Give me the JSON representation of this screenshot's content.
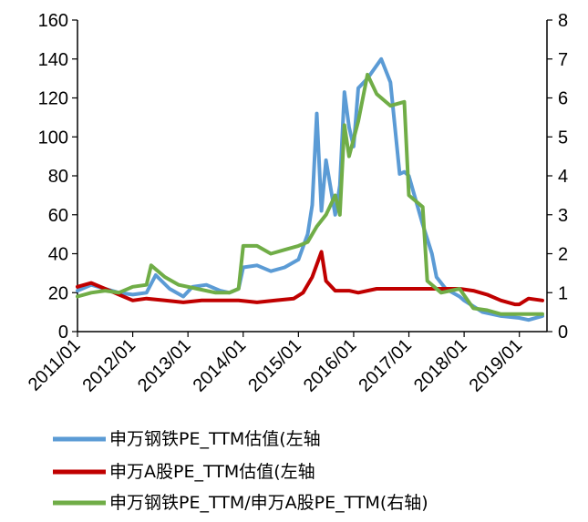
{
  "colors": {
    "blue": "#5B9BD5",
    "red": "#C00000",
    "green": "#70AD47",
    "axis": "#000000"
  },
  "legend": [
    {
      "label": "申万钢铁PE_TTM估值(左轴",
      "color": "#5B9BD5"
    },
    {
      "label": "申万A股PE_TTM估值(左轴",
      "color": "#C00000"
    },
    {
      "label": "申万钢铁PE_TTM/申万A股PE_TTM(右轴)",
      "color": "#70AD47"
    }
  ],
  "chart_data": {
    "type": "line",
    "x_axis": {
      "ticks": [
        "2011/01",
        "2012/01",
        "2013/01",
        "2014/01",
        "2015/01",
        "2016/01",
        "2017/01",
        "2018/01",
        "2019/01"
      ],
      "range": [
        "2011-01",
        "2019-06"
      ]
    },
    "y_left": {
      "ticks": [
        "0",
        "20",
        "40",
        "60",
        "80",
        "100",
        "120",
        "140",
        "160"
      ],
      "ylim": [
        0,
        160
      ]
    },
    "y_right": {
      "ticks": [
        "0",
        "1",
        "2",
        "3",
        "4",
        "5",
        "6",
        "7",
        "8"
      ],
      "ylim": [
        0,
        8
      ]
    },
    "grid": false,
    "legend_position": "bottom",
    "series": [
      {
        "name": "申万钢铁PE_TTM估值(左轴",
        "axis": "left",
        "color": "#5B9BD5",
        "x": [
          "2011-01",
          "2011-04",
          "2011-07",
          "2011-10",
          "2012-01",
          "2012-04",
          "2012-06",
          "2012-09",
          "2012-12",
          "2013-02",
          "2013-05",
          "2013-08",
          "2013-10",
          "2013-12",
          "2014-01",
          "2014-04",
          "2014-07",
          "2014-10",
          "2015-01",
          "2015-03",
          "2015-04",
          "2015-05",
          "2015-06",
          "2015-07",
          "2015-09",
          "2015-10",
          "2015-11",
          "2015-12",
          "2016-01",
          "2016-02",
          "2016-04",
          "2016-07",
          "2016-09",
          "2016-11",
          "2016-12",
          "2017-01",
          "2017-04",
          "2017-06",
          "2017-07",
          "2017-09",
          "2017-12",
          "2018-01",
          "2018-05",
          "2018-09",
          "2019-01",
          "2019-03",
          "2019-06"
        ],
        "y": [
          21,
          24,
          22,
          20,
          19,
          20,
          29,
          22,
          18,
          23,
          24,
          21,
          20,
          22,
          33,
          34,
          31,
          33,
          37,
          50,
          65,
          112,
          62,
          88,
          60,
          75,
          123,
          105,
          95,
          125,
          130,
          140,
          128,
          81,
          82,
          80,
          55,
          40,
          28,
          22,
          18,
          16,
          10,
          8,
          7,
          6,
          8
        ]
      },
      {
        "name": "申万A股PE_TTM估值(左轴",
        "axis": "left",
        "color": "#C00000",
        "x": [
          "2011-01",
          "2011-04",
          "2011-07",
          "2011-10",
          "2012-01",
          "2012-04",
          "2012-08",
          "2012-12",
          "2013-04",
          "2013-08",
          "2013-12",
          "2014-04",
          "2014-08",
          "2014-12",
          "2015-02",
          "2015-04",
          "2015-06",
          "2015-07",
          "2015-09",
          "2015-12",
          "2016-02",
          "2016-06",
          "2016-10",
          "2017-01",
          "2017-06",
          "2017-12",
          "2018-03",
          "2018-06",
          "2018-09",
          "2018-12",
          "2019-01",
          "2019-03",
          "2019-06"
        ],
        "y": [
          23,
          25,
          22,
          19,
          16,
          17,
          16,
          15,
          16,
          16,
          16,
          15,
          16,
          17,
          20,
          28,
          41,
          26,
          21,
          21,
          20,
          22,
          22,
          22,
          22,
          22,
          21,
          19,
          16,
          14,
          14,
          17,
          16
        ]
      },
      {
        "name": "申万钢铁PE_TTM/申万A股PE_TTM(右轴)",
        "axis": "right",
        "color": "#70AD47",
        "x": [
          "2011-01",
          "2011-04",
          "2011-07",
          "2011-10",
          "2012-01",
          "2012-04",
          "2012-05",
          "2012-08",
          "2012-11",
          "2013-03",
          "2013-07",
          "2013-10",
          "2013-12",
          "2014-01",
          "2014-04",
          "2014-07",
          "2014-10",
          "2015-01",
          "2015-03",
          "2015-05",
          "2015-07",
          "2015-09",
          "2015-10",
          "2015-11",
          "2015-12",
          "2016-02",
          "2016-04",
          "2016-06",
          "2016-09",
          "2016-12",
          "2017-01",
          "2017-04",
          "2017-05",
          "2017-08",
          "2017-12",
          "2018-03",
          "2018-06",
          "2018-09",
          "2019-01",
          "2019-06"
        ],
        "y": [
          0.9,
          1.0,
          1.05,
          1.0,
          1.15,
          1.2,
          1.7,
          1.4,
          1.2,
          1.1,
          1.0,
          1.0,
          1.1,
          2.2,
          2.2,
          2.0,
          2.1,
          2.2,
          2.3,
          2.7,
          3.0,
          3.5,
          3.0,
          5.3,
          4.5,
          5.4,
          6.6,
          6.1,
          5.8,
          5.9,
          3.5,
          3.2,
          1.3,
          1.0,
          1.1,
          0.6,
          0.55,
          0.45,
          0.45,
          0.45
        ]
      }
    ]
  }
}
